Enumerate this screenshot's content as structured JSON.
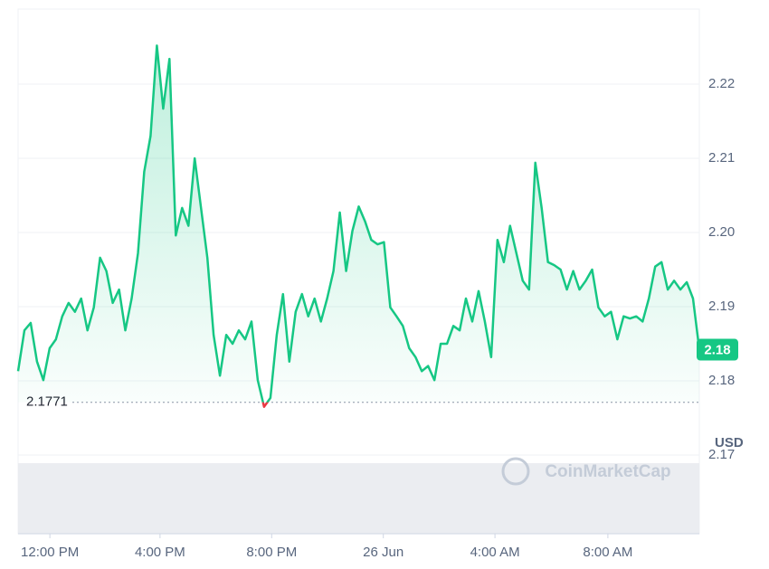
{
  "chart_data": {
    "type": "line",
    "y_axis_label": "USD",
    "watermark": "CoinMarketCap",
    "xlim": [
      0,
      108
    ],
    "xticks": [
      {
        "value": 5.04,
        "label": "12:00 PM"
      },
      {
        "value": 22.5,
        "label": "4:00 PM"
      },
      {
        "value": 40.2,
        "label": "8:00 PM"
      },
      {
        "value": 57.9,
        "label": "26 Jun"
      },
      {
        "value": 75.6,
        "label": "4:00 AM"
      },
      {
        "value": 93.5,
        "label": "8:00 AM"
      }
    ],
    "ylim": [
      2.16,
      2.23
    ],
    "yticks": [
      2.17,
      2.18,
      2.19,
      {
        "value": 2.2,
        "label": "2.20"
      },
      2.21,
      2.22
    ],
    "grid": true,
    "reference_line": 2.1771,
    "last_label": "2.18",
    "series": [
      {
        "color": "#16c784",
        "below_color": "#ea3943",
        "values": [
          2.1813,
          2.1868,
          2.1878,
          2.1826,
          2.1801,
          2.1844,
          2.1856,
          2.1887,
          2.1905,
          2.1893,
          2.1911,
          2.1868,
          2.1899,
          2.1966,
          2.1948,
          2.1905,
          2.1923,
          2.1868,
          2.1911,
          2.1972,
          2.2082,
          2.213,
          2.2252,
          2.2167,
          2.2234,
          2.1996,
          2.2033,
          2.2009,
          2.21,
          2.2033,
          2.1966,
          2.1862,
          2.1807,
          2.1862,
          2.185,
          2.1868,
          2.1856,
          2.188,
          2.1801,
          2.1765,
          2.1777,
          2.1862,
          2.1917,
          2.1826,
          2.1893,
          2.1917,
          2.1887,
          2.1911,
          2.188,
          2.1911,
          2.1948,
          2.2027,
          2.1948,
          2.2002,
          2.2035,
          2.2015,
          2.199,
          2.1984,
          2.1987,
          2.1899,
          2.1887,
          2.1874,
          2.1844,
          2.1832,
          2.1813,
          2.182,
          2.1801,
          2.185,
          2.185,
          2.1874,
          2.1868,
          2.1911,
          2.188,
          2.1921,
          2.188,
          2.1832,
          2.199,
          2.196,
          2.2009,
          2.1972,
          2.1935,
          2.1923,
          2.2094,
          2.2033,
          2.196,
          2.1956,
          2.195,
          2.1923,
          2.1948,
          2.1923,
          2.1935,
          2.195,
          2.1899,
          2.1887,
          2.1893,
          2.1856,
          2.1887,
          2.1884,
          2.1887,
          2.188,
          2.1911,
          2.1954,
          2.196,
          2.1923,
          2.1935,
          2.1923,
          2.1933,
          2.1911,
          2.1842
        ]
      }
    ]
  }
}
